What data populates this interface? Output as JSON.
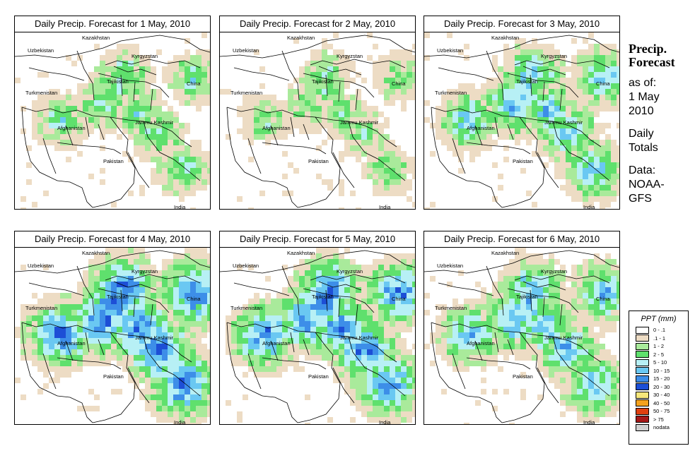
{
  "panels": [
    {
      "title": "Daily Precip. Forecast for  1 May, 2010",
      "intensity": 0.35
    },
    {
      "title": "Daily Precip. Forecast for  2 May, 2010",
      "intensity": 0.25
    },
    {
      "title": "Daily Precip. Forecast for  3 May, 2010",
      "intensity": 0.55
    },
    {
      "title": "Daily Precip. Forecast for  4 May, 2010",
      "intensity": 0.8
    },
    {
      "title": "Daily Precip. Forecast for  5 May, 2010",
      "intensity": 0.75
    },
    {
      "title": "Daily Precip. Forecast for  6 May, 2010",
      "intensity": 0.6
    }
  ],
  "map_labels": {
    "kazakhstan": "Kazakhstan",
    "uzbekistan": "Uzbekistan",
    "kyrgyzstan": "Kyrgyzstan",
    "tajikistan": "Tajikistan",
    "turkmenistan": "Turkmenistan",
    "china": "China",
    "afghanistan": "Afghanistan",
    "jammu_kashmir": "Jammu Kashmir",
    "pakistan": "Pakistan",
    "india": "India"
  },
  "sidebar": {
    "title_line1": "Precip.",
    "title_line2": "Forecast",
    "asof_line1": "as of:",
    "asof_line2": "1 May",
    "asof_line3": "2010",
    "daily_line1": "Daily",
    "daily_line2": "Totals",
    "data_line1": "Data:",
    "data_line2": "NOAA-",
    "data_line3": "GFS"
  },
  "legend": {
    "title": "PPT (mm)",
    "items": [
      {
        "label": "0 - .1",
        "color": "#ffffff"
      },
      {
        "label": ".1 - 1",
        "color": "#eddcc4"
      },
      {
        "label": "1 - 2",
        "color": "#a9ea9b"
      },
      {
        "label": "2 - 5",
        "color": "#5fe06d"
      },
      {
        "label": "5 - 10",
        "color": "#b7f0f5"
      },
      {
        "label": "10 - 15",
        "color": "#6ac8f2"
      },
      {
        "label": "15 - 20",
        "color": "#3d8ee8"
      },
      {
        "label": "20 - 30",
        "color": "#1d4fd6"
      },
      {
        "label": "30 - 40",
        "color": "#f7e77a"
      },
      {
        "label": "40 - 50",
        "color": "#f5a21e"
      },
      {
        "label": "50 - 75",
        "color": "#e0400f"
      },
      {
        "label": "> 75",
        "color": "#a61818"
      },
      {
        "label": "nodata",
        "color": "#cfcfcf"
      }
    ]
  }
}
